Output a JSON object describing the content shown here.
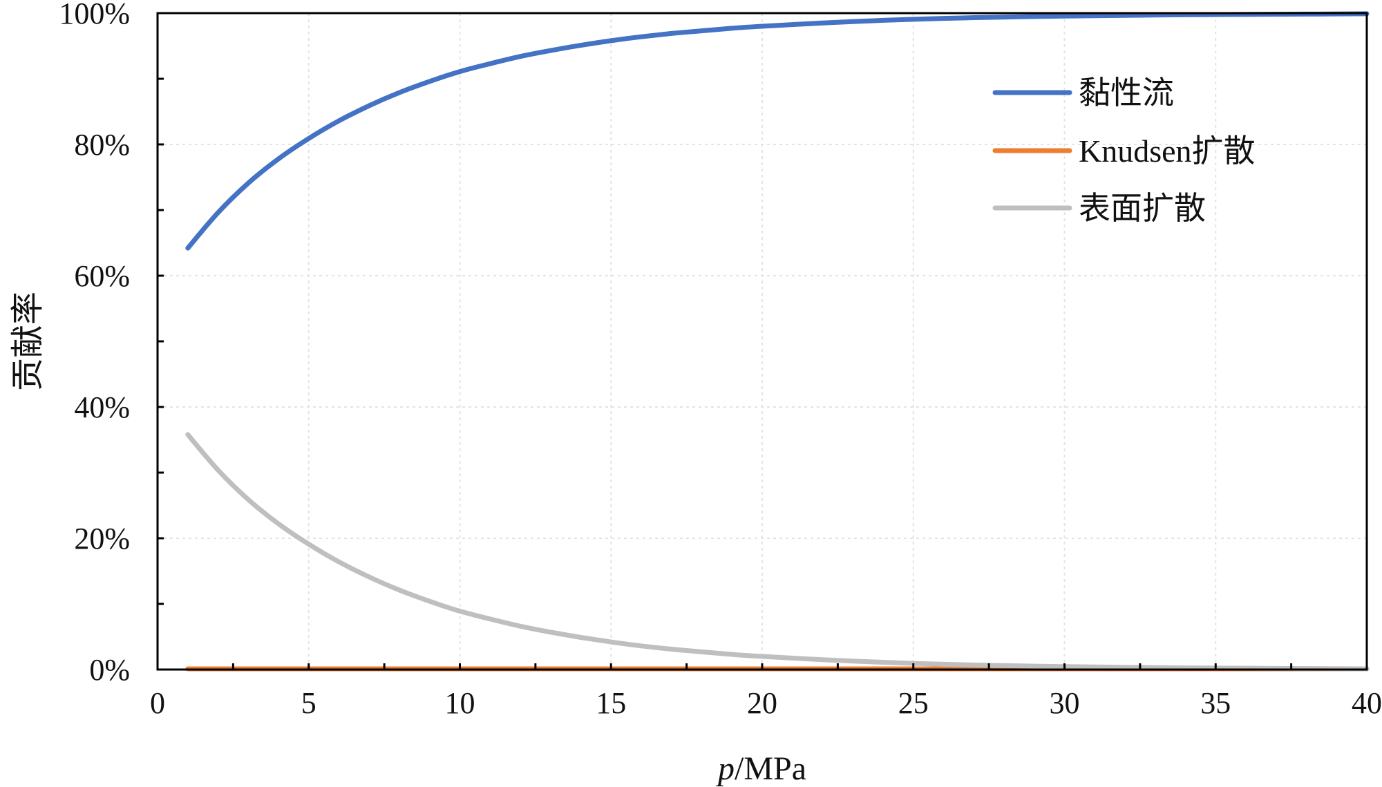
{
  "chart_data": {
    "type": "line",
    "title": "",
    "xlabel_italic": "p",
    "xlabel_unit": "/MPa",
    "ylabel": "贡献率",
    "xlim": [
      0,
      40
    ],
    "ylim": [
      0,
      100
    ],
    "x_ticks": [
      "0",
      "5",
      "10",
      "15",
      "20",
      "25",
      "30",
      "35",
      "40"
    ],
    "y_ticks": [
      "0%",
      "20%",
      "40%",
      "60%",
      "80%",
      "100%"
    ],
    "x": [
      1,
      2,
      3,
      4,
      5,
      6,
      7,
      8,
      9,
      10,
      11,
      12,
      13,
      14,
      15,
      16,
      17,
      18,
      19,
      20,
      22,
      24,
      26,
      28,
      30,
      32,
      34,
      36,
      38,
      40
    ],
    "series": [
      {
        "name": "黏性流",
        "color": "#4472C4",
        "values": [
          64.2,
          69.6,
          74.1,
          77.8,
          80.9,
          83.6,
          85.9,
          87.9,
          89.6,
          91.1,
          92.3,
          93.4,
          94.3,
          95.1,
          95.8,
          96.4,
          96.9,
          97.3,
          97.7,
          98.0,
          98.5,
          98.9,
          99.2,
          99.4,
          99.55,
          99.65,
          99.75,
          99.8,
          99.85,
          99.9
        ]
      },
      {
        "name": "Knudsen扩散",
        "color": "#ED7D31",
        "values": [
          0.1,
          0.1,
          0.1,
          0.1,
          0.1,
          0.1,
          0.1,
          0.1,
          0.1,
          0.1,
          0.1,
          0.1,
          0.1,
          0.1,
          0.1,
          0.1,
          0.1,
          0.1,
          0.1,
          0.1,
          0.1,
          0.1,
          0.1,
          0.1,
          0.1,
          0.1,
          0.1,
          0.1,
          0.1,
          0.1
        ]
      },
      {
        "name": "表面扩散",
        "color": "#BFBFBF",
        "values": [
          35.8,
          30.4,
          25.9,
          22.2,
          19.1,
          16.4,
          14.1,
          12.1,
          10.4,
          8.9,
          7.7,
          6.6,
          5.7,
          4.9,
          4.2,
          3.6,
          3.1,
          2.7,
          2.3,
          2.0,
          1.5,
          1.1,
          0.8,
          0.6,
          0.45,
          0.35,
          0.25,
          0.2,
          0.15,
          0.1
        ]
      }
    ],
    "legend_position": "upper-right-inside",
    "grid": true
  }
}
